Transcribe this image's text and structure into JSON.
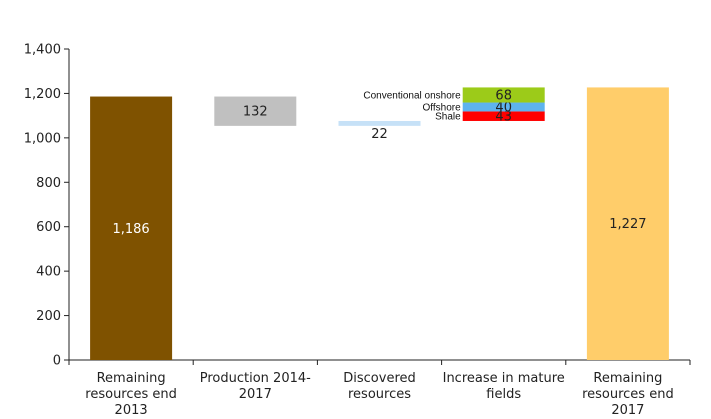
{
  "chart_data": {
    "type": "bar",
    "title": "",
    "xlabel": "",
    "ylabel": "",
    "ylim": [
      0,
      1400
    ],
    "yticks": [
      0,
      200,
      400,
      600,
      800,
      1000,
      1200,
      1400
    ],
    "ytick_labels": [
      "0",
      "200",
      "400",
      "600",
      "800",
      "1,000",
      "1,200",
      "1,400"
    ],
    "grid": false,
    "legend": "none",
    "categories": [
      [
        "Remaining",
        "resources end",
        "2013"
      ],
      [
        "Production 2014-",
        "2017"
      ],
      [
        "Discovered",
        "resources"
      ],
      [
        "Increase in mature",
        "fields"
      ],
      [
        "Remaining",
        "resources end",
        "2017"
      ]
    ],
    "bars": [
      {
        "from": 0,
        "to": 1186,
        "label": "1,186",
        "color": "#7f5200",
        "label_color": "light"
      },
      {
        "from": 1054,
        "to": 1186,
        "label": "132",
        "color": "#c0c0c0",
        "label_color": "dark"
      },
      {
        "from": 1054,
        "to": 1076,
        "label": "22",
        "color": "#c6e1f7",
        "label_color": "dark"
      },
      {
        "segments": [
          {
            "name": "Shale",
            "from": 1076,
            "to": 1119,
            "label": "43",
            "color": "#ff0000"
          },
          {
            "name": "Offshore",
            "from": 1119,
            "to": 1159,
            "label": "40",
            "color": "#5eb3ee"
          },
          {
            "name": "Conventional onshore",
            "from": 1159,
            "to": 1227,
            "label": "68",
            "color": "#9ccb19"
          }
        ]
      },
      {
        "from": 0,
        "to": 1227,
        "label": "1,227",
        "color": "#ffcd6a",
        "label_color": "dark"
      }
    ]
  }
}
